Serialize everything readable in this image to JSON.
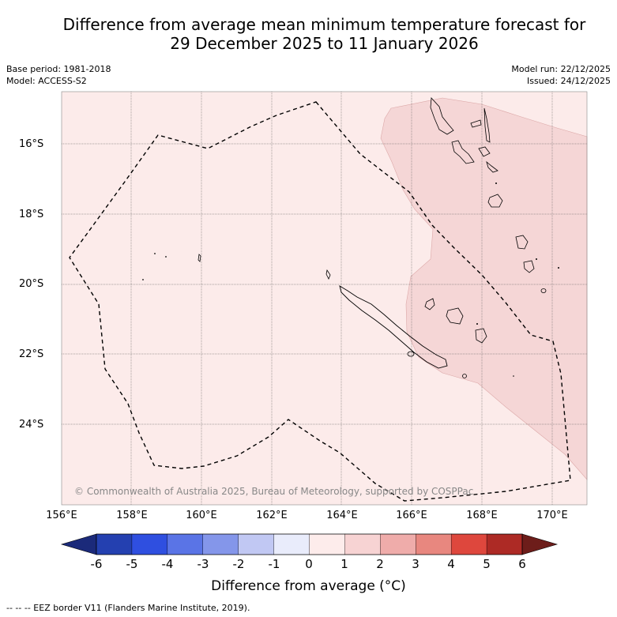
{
  "title_line1": "Difference from average mean minimum temperature forecast for",
  "title_line2": "29 December 2025 to 11 January 2026",
  "info_left": {
    "base_period": "Base period: 1981-2018",
    "model": "Model: ACCESS-S2"
  },
  "info_right": {
    "model_run": "Model run: 22/12/2025",
    "issued": "Issued: 24/12/2025"
  },
  "copyright": "© Commonwealth of Australia 2025, Bureau of Meteorology, supported by COSPPac",
  "y_ticks": [
    "16°S",
    "18°S",
    "20°S",
    "22°S",
    "24°S"
  ],
  "x_ticks": [
    "156°E",
    "158°E",
    "160°E",
    "162°E",
    "164°E",
    "166°E",
    "168°E",
    "170°E"
  ],
  "colorbar": {
    "labels": [
      "-6",
      "-5",
      "-4",
      "-3",
      "-2",
      "-1",
      "0",
      "1",
      "2",
      "3",
      "4",
      "5",
      "6"
    ],
    "colors": [
      "#1b2a7a",
      "#2440b0",
      "#2f4fe0",
      "#5a74e6",
      "#8496ea",
      "#c1c8f3",
      "#e9ecfb",
      "#fdeceb",
      "#f7d3d3",
      "#efacaa",
      "#e8877f",
      "#de473d",
      "#ad2a25",
      "#6d1d1a"
    ],
    "title": "Difference from average (°C)"
  },
  "map_colors": {
    "background_anomaly": "#fcebea",
    "positive_1_2": "#f5d6d6"
  },
  "footer": "--  --  -- EEZ border V11 (Flanders Marine Institute, 2019)."
}
